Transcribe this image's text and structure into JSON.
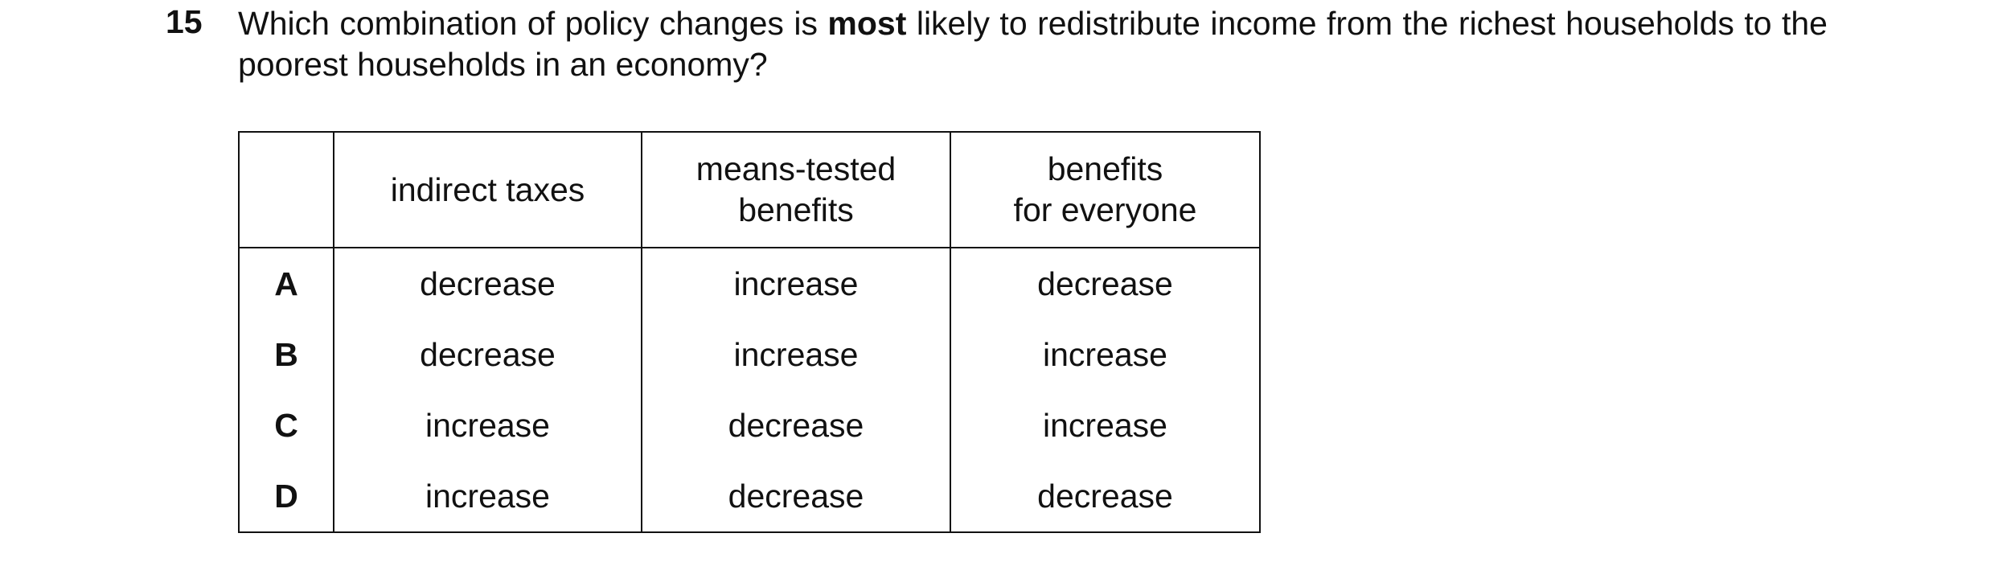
{
  "question": {
    "number": "15",
    "text_before": "Which combination of policy changes is ",
    "emphasis": "most",
    "text_after": " likely to redistribute income from the richest households to the poorest households in an economy?"
  },
  "table": {
    "header": [
      "indirect taxes",
      "means-tested\nbenefits",
      "benefits\nfor everyone"
    ],
    "rows": [
      {
        "option": "A",
        "cells": [
          "decrease",
          "increase",
          "decrease"
        ]
      },
      {
        "option": "B",
        "cells": [
          "decrease",
          "increase",
          "increase"
        ]
      },
      {
        "option": "C",
        "cells": [
          "increase",
          "decrease",
          "increase"
        ]
      },
      {
        "option": "D",
        "cells": [
          "increase",
          "decrease",
          "decrease"
        ]
      }
    ]
  }
}
